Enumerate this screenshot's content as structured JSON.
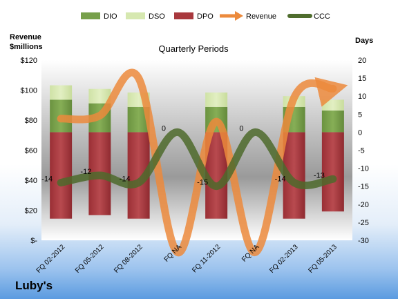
{
  "company": "Luby's",
  "chart_data": {
    "type": "bar",
    "title": "Quarterly Periods",
    "categories": [
      "FQ 02-2012",
      "FQ 05-2012",
      "FQ 08-2012",
      "FQ NA",
      "FQ 11-2012",
      "FQ NA",
      "FQ 02-2013",
      "FQ 05-2013"
    ],
    "left_axis": {
      "label_line1": "Revenue",
      "label_line2": "$millions",
      "ylim": [
        0,
        120
      ],
      "ticks": [
        0,
        20,
        40,
        60,
        80,
        100,
        120
      ],
      "tick_labels": [
        "$-",
        "$20",
        "$40",
        "$60",
        "$80",
        "$100",
        "$120"
      ]
    },
    "right_axis": {
      "label": "Days",
      "ylim": [
        -30,
        20
      ],
      "ticks": [
        -30,
        -25,
        -20,
        -15,
        -10,
        -5,
        0,
        5,
        10,
        15,
        20
      ],
      "tick_labels": [
        "-30",
        "-25",
        "-20",
        "-15",
        "-10",
        "-5",
        "0",
        "5",
        "10",
        "15",
        "20"
      ]
    },
    "bars": {
      "dpo_bottom": [
        -24,
        -23,
        -24,
        null,
        -24,
        null,
        -24,
        -22
      ],
      "dpo_top": [
        0,
        0,
        0,
        null,
        0,
        null,
        0,
        0
      ],
      "dio_top": [
        9,
        8,
        7,
        null,
        7,
        null,
        7,
        6
      ],
      "dso_top": [
        13,
        12,
        11,
        null,
        11,
        null,
        10,
        9
      ]
    },
    "series": [
      {
        "name": "Revenue",
        "axis": "left",
        "values": [
          81,
          83,
          108,
          -8,
          79,
          -8,
          95,
          101
        ]
      },
      {
        "name": "CCC",
        "axis": "right",
        "values": [
          -14,
          -12,
          -14,
          0,
          -15,
          0,
          -14,
          -13
        ],
        "data_labels": [
          "-14",
          "-12",
          "-14",
          "0",
          "-15",
          "0",
          "-14",
          "-13"
        ]
      }
    ],
    "legend": {
      "placement": "top",
      "items": [
        {
          "name": "DIO",
          "kind": "bar",
          "color": "#77a04b"
        },
        {
          "name": "DSO",
          "kind": "bar",
          "color": "#d6e8b0"
        },
        {
          "name": "DPO",
          "kind": "bar",
          "color": "#a8383d"
        },
        {
          "name": "Revenue",
          "kind": "arrow",
          "color": "#ec8a3c"
        },
        {
          "name": "CCC",
          "kind": "line",
          "color": "#4f6d2e"
        }
      ]
    },
    "grid": false
  }
}
